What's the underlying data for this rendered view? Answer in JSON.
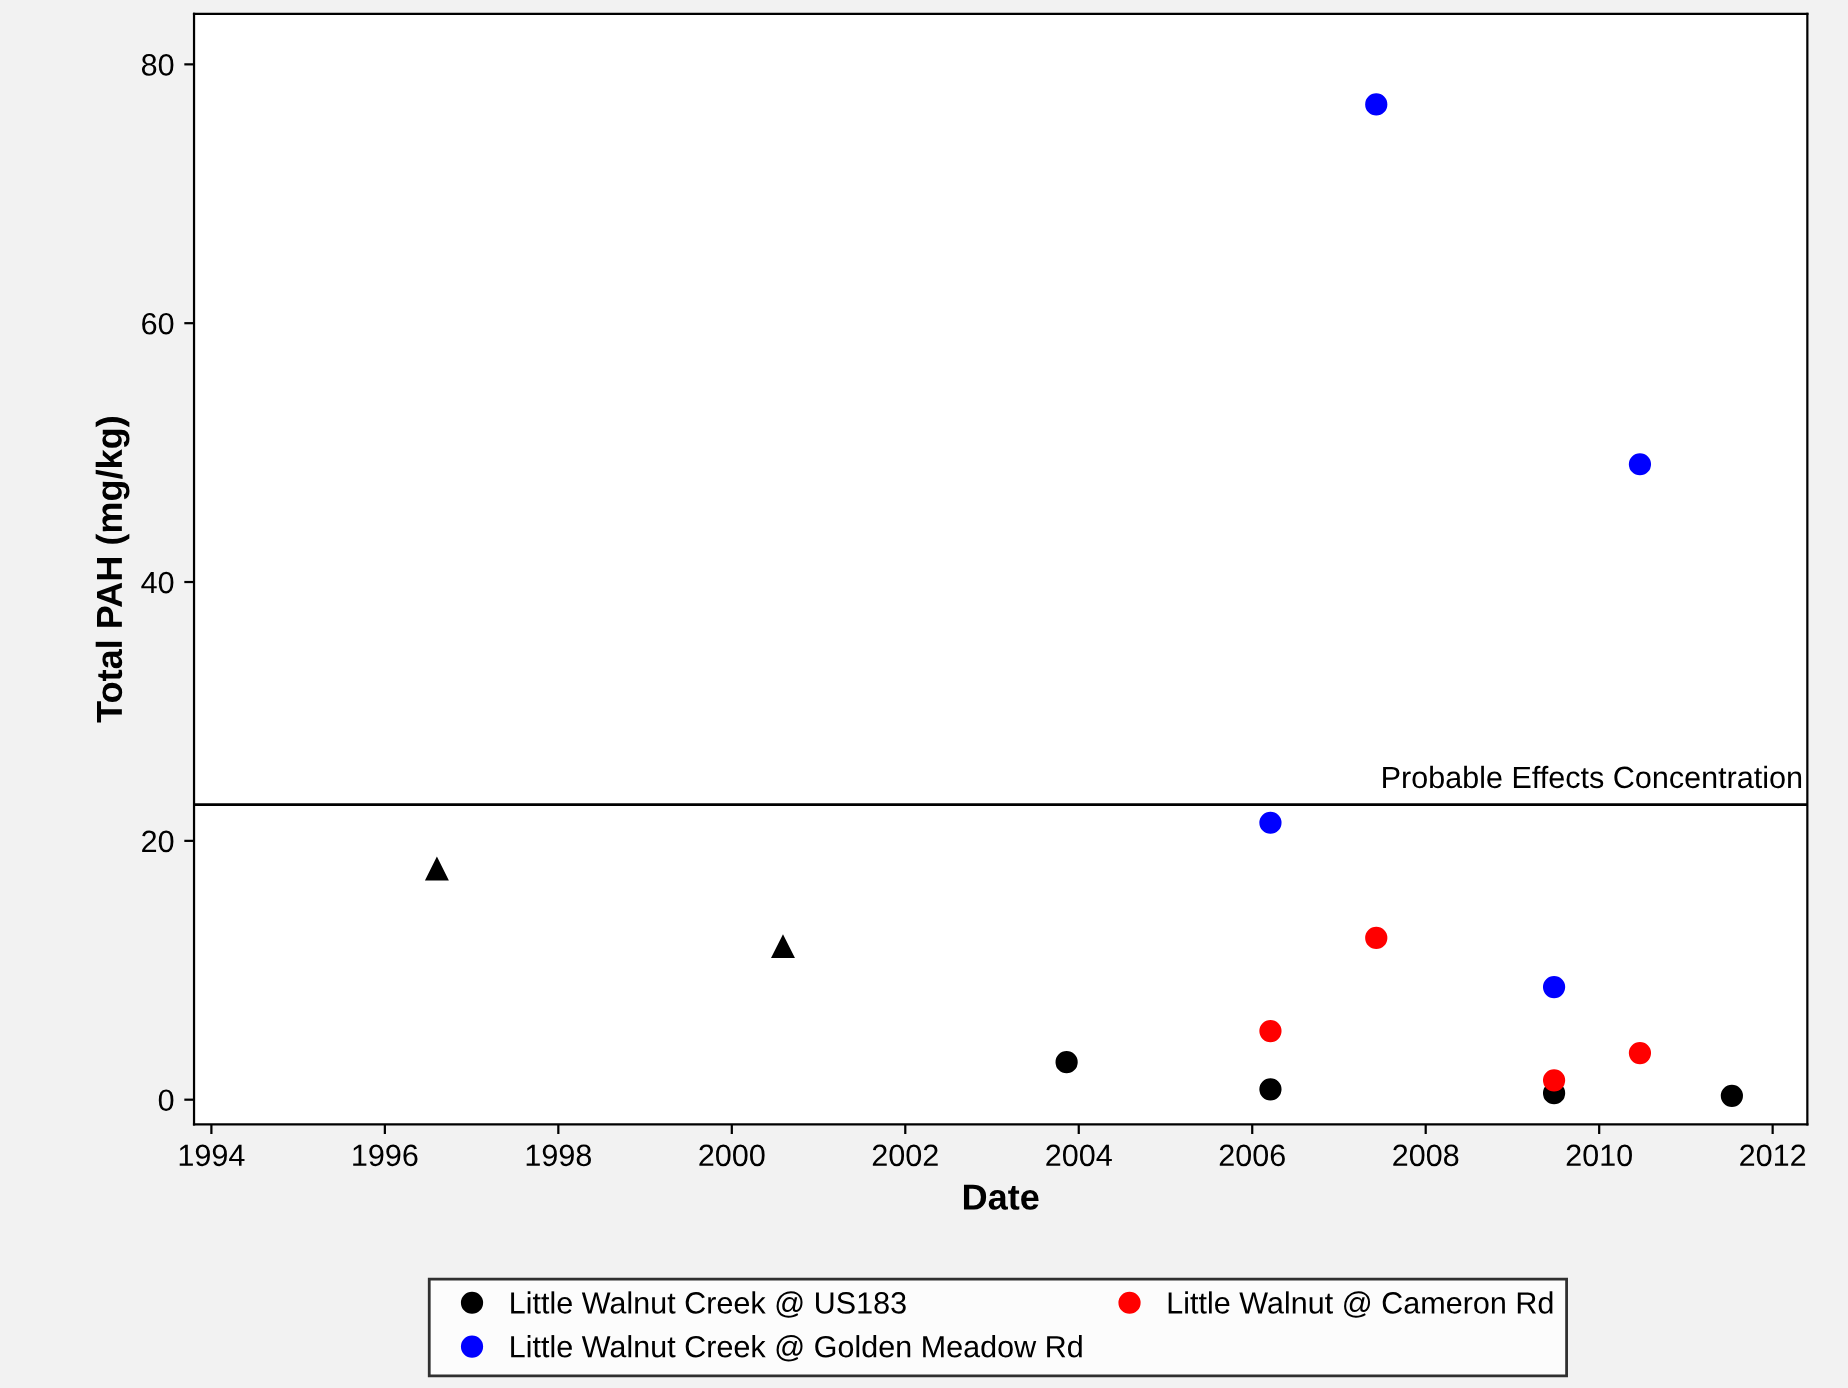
{
  "chart_data": {
    "type": "scatter",
    "xlabel": "Date",
    "ylabel": "Total PAH (mg/kg)",
    "xlim": [
      1993.8,
      2012.4
    ],
    "xticks": [
      1994,
      1996,
      1998,
      2000,
      2002,
      2004,
      2006,
      2008,
      2010,
      2012
    ],
    "ylim": [
      -1.9,
      83.9
    ],
    "yticks": [
      0,
      20,
      40,
      60,
      80
    ],
    "grid": false,
    "legend": "bottom",
    "marker": "circle",
    "series": [
      {
        "name": "Little Walnut Creek @ US183",
        "color": "#000000",
        "x": [
          2003.86,
          2006.21,
          2009.48,
          2011.53
        ],
        "values": [
          2.9,
          0.8,
          0.5,
          0.3
        ]
      },
      {
        "name": "Little Walnut Creek @ Golden Meadow Rd",
        "color": "#0000ff",
        "x": [
          2006.21,
          2007.43,
          2009.48,
          2010.47
        ],
        "values": [
          21.4,
          76.9,
          8.7,
          49.1
        ]
      },
      {
        "name": "Little Walnut @ Cameron Rd",
        "color": "#ff0000",
        "x": [
          2006.21,
          2007.43,
          2009.48,
          2010.47
        ],
        "values": [
          5.3,
          12.5,
          1.5,
          3.6
        ]
      },
      {
        "color": "#000000",
        "marker": "triangle",
        "x": [
          1996.6,
          2000.59
        ],
        "values": [
          17.8,
          11.8
        ]
      }
    ],
    "ref_lines": [
      {
        "axis": "y",
        "value": 22.8,
        "label": "Probable Effects Concentration",
        "color": "#000000",
        "line_style": "solid"
      }
    ]
  }
}
